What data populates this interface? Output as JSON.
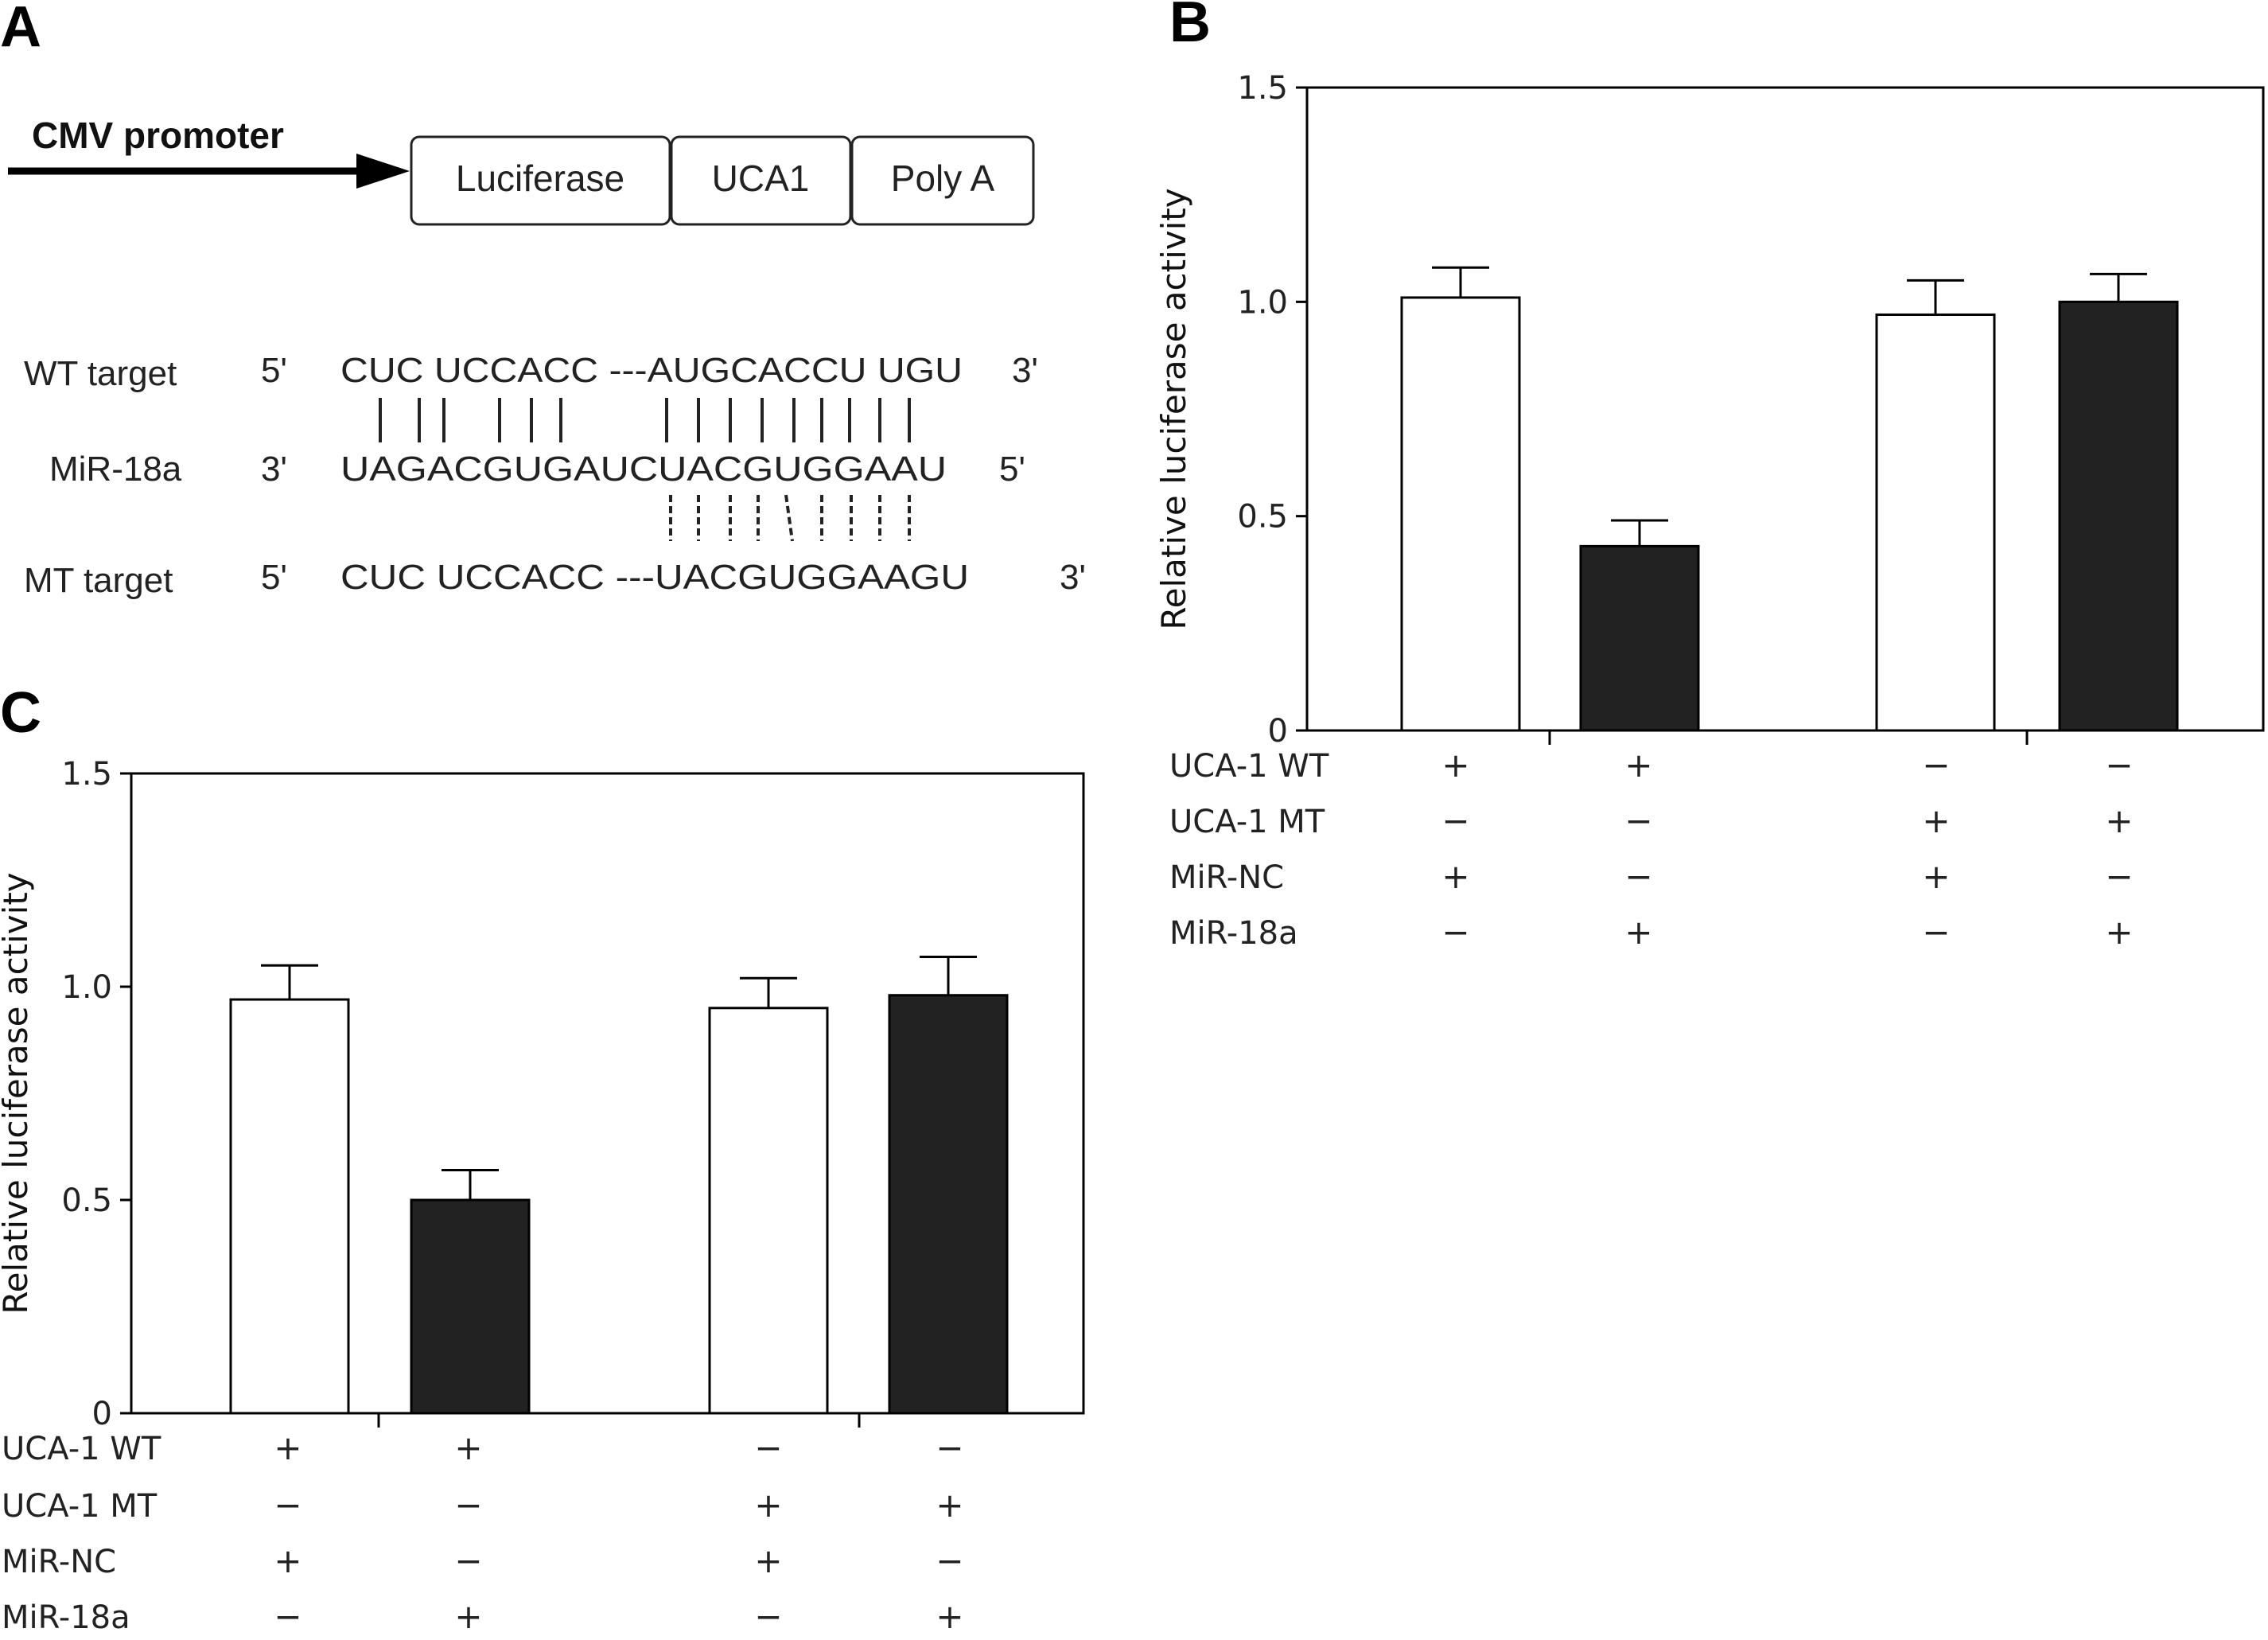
{
  "panels": {
    "a": "A",
    "b": "B",
    "c": "C"
  },
  "construct": {
    "promoter": "CMV promoter",
    "boxes": [
      "Luciferase",
      "UCA1",
      "Poly A"
    ]
  },
  "sequences": {
    "wt": {
      "label": "WT target",
      "left_end": "5'",
      "seq": "CUC UCCACC ---AUGCACCU UGU",
      "right_end": "3'"
    },
    "mir": {
      "label": "MiR-18a",
      "left_end": "3'",
      "seq": "UAGACGUGAUCUACGUGGAAU",
      "right_end": "5'"
    },
    "mt": {
      "label": "MT target",
      "left_end": "5'",
      "seq": "CUC UCCACC ---UACGUGGAAGU",
      "right_end": "3'"
    }
  },
  "conditions": {
    "row_labels": [
      "UCA-1 WT",
      "UCA-1 MT",
      "MiR-NC",
      "MiR-18a"
    ],
    "signs": [
      [
        "+",
        "+",
        "−",
        "−"
      ],
      [
        "−",
        "−",
        "+",
        "+"
      ],
      [
        "+",
        "−",
        "+",
        "−"
      ],
      [
        "−",
        "+",
        "−",
        "+"
      ]
    ]
  },
  "colors": {
    "filled_bar": "#222222",
    "open_bar": "#ffffff",
    "stroke": "#000000"
  },
  "chart_data": [
    {
      "panel": "B",
      "type": "bar",
      "ylabel": "Relative luciferase activity",
      "ylim": [
        0,
        1.5
      ],
      "yticks": [
        "0",
        "0.5",
        "1.0",
        "1.5"
      ],
      "values": [
        1.01,
        0.43,
        0.97,
        1.0
      ],
      "errors": [
        0.07,
        0.06,
        0.08,
        0.065
      ],
      "fills": [
        "open",
        "filled",
        "open",
        "filled"
      ]
    },
    {
      "panel": "C",
      "type": "bar",
      "ylabel": "Relative luciferase activity",
      "ylim": [
        0,
        1.5
      ],
      "yticks": [
        "0",
        "0.5",
        "1.0",
        "1.5"
      ],
      "values": [
        0.97,
        0.5,
        0.95,
        0.98
      ],
      "errors": [
        0.08,
        0.07,
        0.07,
        0.09
      ],
      "fills": [
        "open",
        "filled",
        "open",
        "filled"
      ]
    }
  ]
}
